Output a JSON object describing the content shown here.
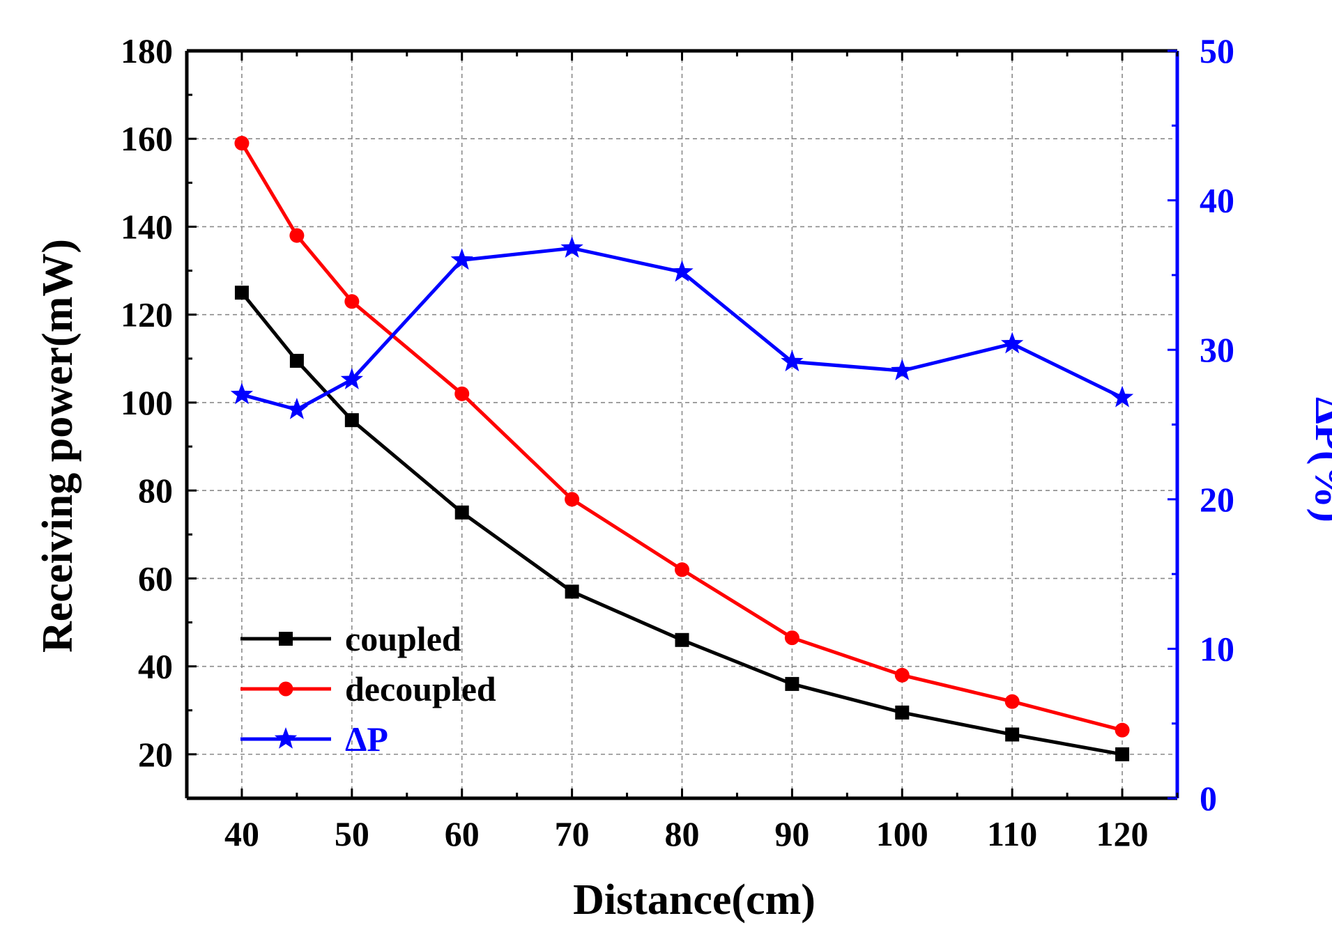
{
  "chart_data": {
    "type": "line",
    "x": [
      40,
      45,
      50,
      60,
      70,
      80,
      90,
      100,
      110,
      120
    ],
    "xlabel": "Distance(cm)",
    "xticks": [
      40,
      50,
      60,
      70,
      80,
      90,
      100,
      110,
      120
    ],
    "xlim": [
      35,
      125
    ],
    "ylabel": "Receiving power(mW)",
    "yticks": [
      20,
      40,
      60,
      80,
      100,
      120,
      140,
      160,
      180
    ],
    "ylim": [
      10,
      180
    ],
    "y2label": "ΔP(%)",
    "y2ticks": [
      0,
      10,
      20,
      30,
      40,
      50
    ],
    "y2lim": [
      0,
      50
    ],
    "grid": true,
    "legend_position": "bottom-left",
    "series": [
      {
        "name": "coupled",
        "axis": "left",
        "marker": "square",
        "color": "#000000",
        "values": [
          125,
          109.5,
          96,
          75,
          57,
          46,
          36,
          29.5,
          24.5,
          20
        ]
      },
      {
        "name": "decoupled",
        "axis": "left",
        "marker": "circle",
        "color": "#ff0000",
        "values": [
          159,
          138,
          123,
          102,
          78,
          62,
          46.5,
          38,
          32,
          25.5
        ]
      },
      {
        "name": "ΔP",
        "axis": "right",
        "marker": "star",
        "color": "#0000ff",
        "values": [
          27,
          26,
          28,
          36,
          36.8,
          35.2,
          29.2,
          28.6,
          30.4,
          26.8
        ]
      }
    ]
  }
}
